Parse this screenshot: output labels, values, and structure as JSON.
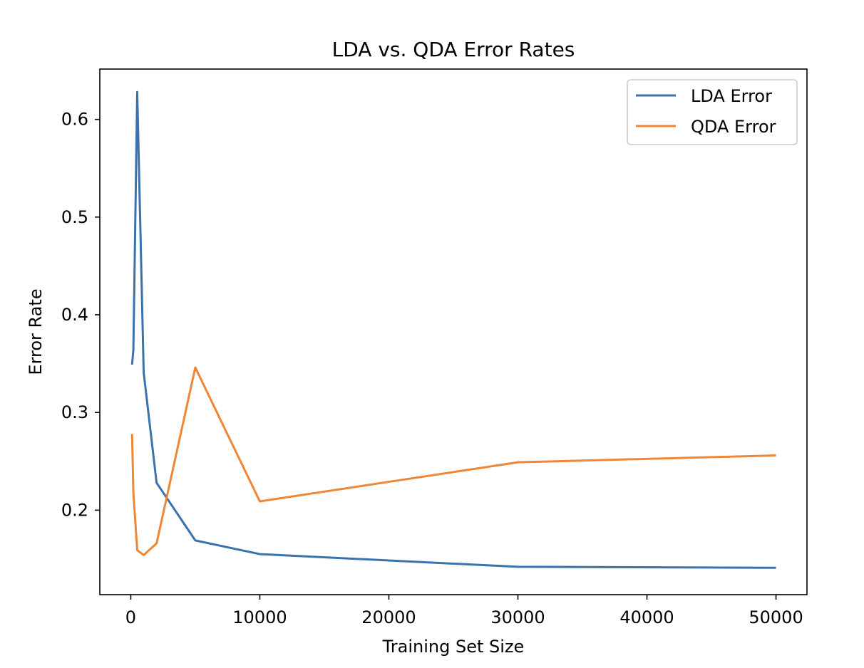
{
  "chart_data": {
    "type": "line",
    "title": "LDA vs. QDA Error Rates",
    "xlabel": "Training Set Size",
    "ylabel": "Error Rate",
    "xlim": [
      -2400,
      52400
    ],
    "ylim": [
      0.1135,
      0.6515
    ],
    "xticks": [
      0,
      10000,
      20000,
      30000,
      40000,
      50000
    ],
    "xtick_labels": [
      "0",
      "10000",
      "20000",
      "30000",
      "40000",
      "50000"
    ],
    "yticks": [
      0.2,
      0.3,
      0.4,
      0.5,
      0.6
    ],
    "ytick_labels": [
      "0.2",
      "0.3",
      "0.4",
      "0.5",
      "0.6"
    ],
    "grid": false,
    "legend_position": "top-right",
    "series": [
      {
        "name": "LDA Error",
        "color": "#3a72ad",
        "x": [
          100,
          200,
          500,
          1000,
          2000,
          5000,
          10000,
          30000,
          50000
        ],
        "y": [
          0.349,
          0.364,
          0.628,
          0.341,
          0.228,
          0.169,
          0.155,
          0.142,
          0.141
        ]
      },
      {
        "name": "QDA Error",
        "color": "#ef8636",
        "x": [
          100,
          200,
          500,
          1000,
          2000,
          5000,
          10000,
          30000,
          50000
        ],
        "y": [
          0.278,
          0.218,
          0.159,
          0.154,
          0.166,
          0.346,
          0.209,
          0.249,
          0.256
        ]
      }
    ]
  }
}
